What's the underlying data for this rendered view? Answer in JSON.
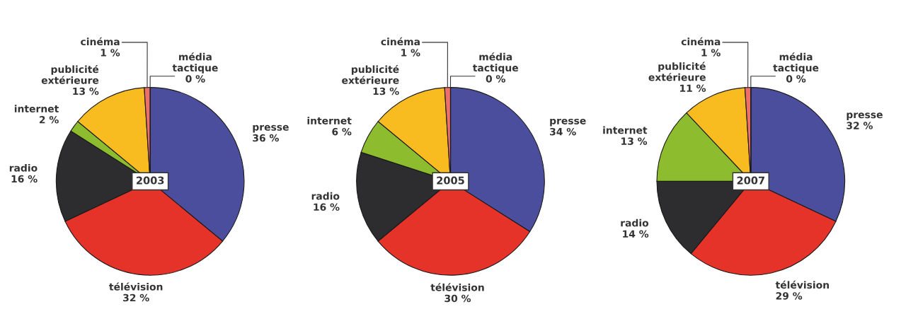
{
  "chart_data": [
    {
      "type": "pie",
      "title": "2003",
      "categories": [
        "presse",
        "télévision",
        "radio",
        "internet",
        "publicité extérieure",
        "cinéma",
        "média tactique"
      ],
      "values": [
        36,
        32,
        16,
        2,
        13,
        1,
        0
      ],
      "colors": [
        "#4b4e9c",
        "#e5332a",
        "#2d2d2f",
        "#8dbd2f",
        "#f9bc20",
        "#ec6f6a",
        "#f4a3a0"
      ],
      "value_labels": [
        "36 %",
        "32 %",
        "16 %",
        "2 %",
        "13 %",
        "1 %",
        "0 %"
      ]
    },
    {
      "type": "pie",
      "title": "2005",
      "categories": [
        "presse",
        "télévision",
        "radio",
        "internet",
        "publicité extérieure",
        "cinéma",
        "média tactique"
      ],
      "values": [
        34,
        30,
        16,
        6,
        13,
        1,
        0
      ],
      "colors": [
        "#4b4e9c",
        "#e5332a",
        "#2d2d2f",
        "#8dbd2f",
        "#f9bc20",
        "#ec6f6a",
        "#f4a3a0"
      ],
      "value_labels": [
        "34 %",
        "30 %",
        "16 %",
        "6 %",
        "13 %",
        "1 %",
        "0 %"
      ]
    },
    {
      "type": "pie",
      "title": "2007",
      "categories": [
        "presse",
        "télévision",
        "radio",
        "internet",
        "publicité extérieure",
        "cinéma",
        "média tactique"
      ],
      "values": [
        32,
        29,
        14,
        13,
        11,
        1,
        0
      ],
      "colors": [
        "#4b4e9c",
        "#e5332a",
        "#2d2d2f",
        "#8dbd2f",
        "#f9bc20",
        "#ec6f6a",
        "#f4a3a0"
      ],
      "value_labels": [
        "32 %",
        "29 %",
        "14 %",
        "13 %",
        "11 %",
        "1 %",
        "0 %"
      ]
    }
  ]
}
